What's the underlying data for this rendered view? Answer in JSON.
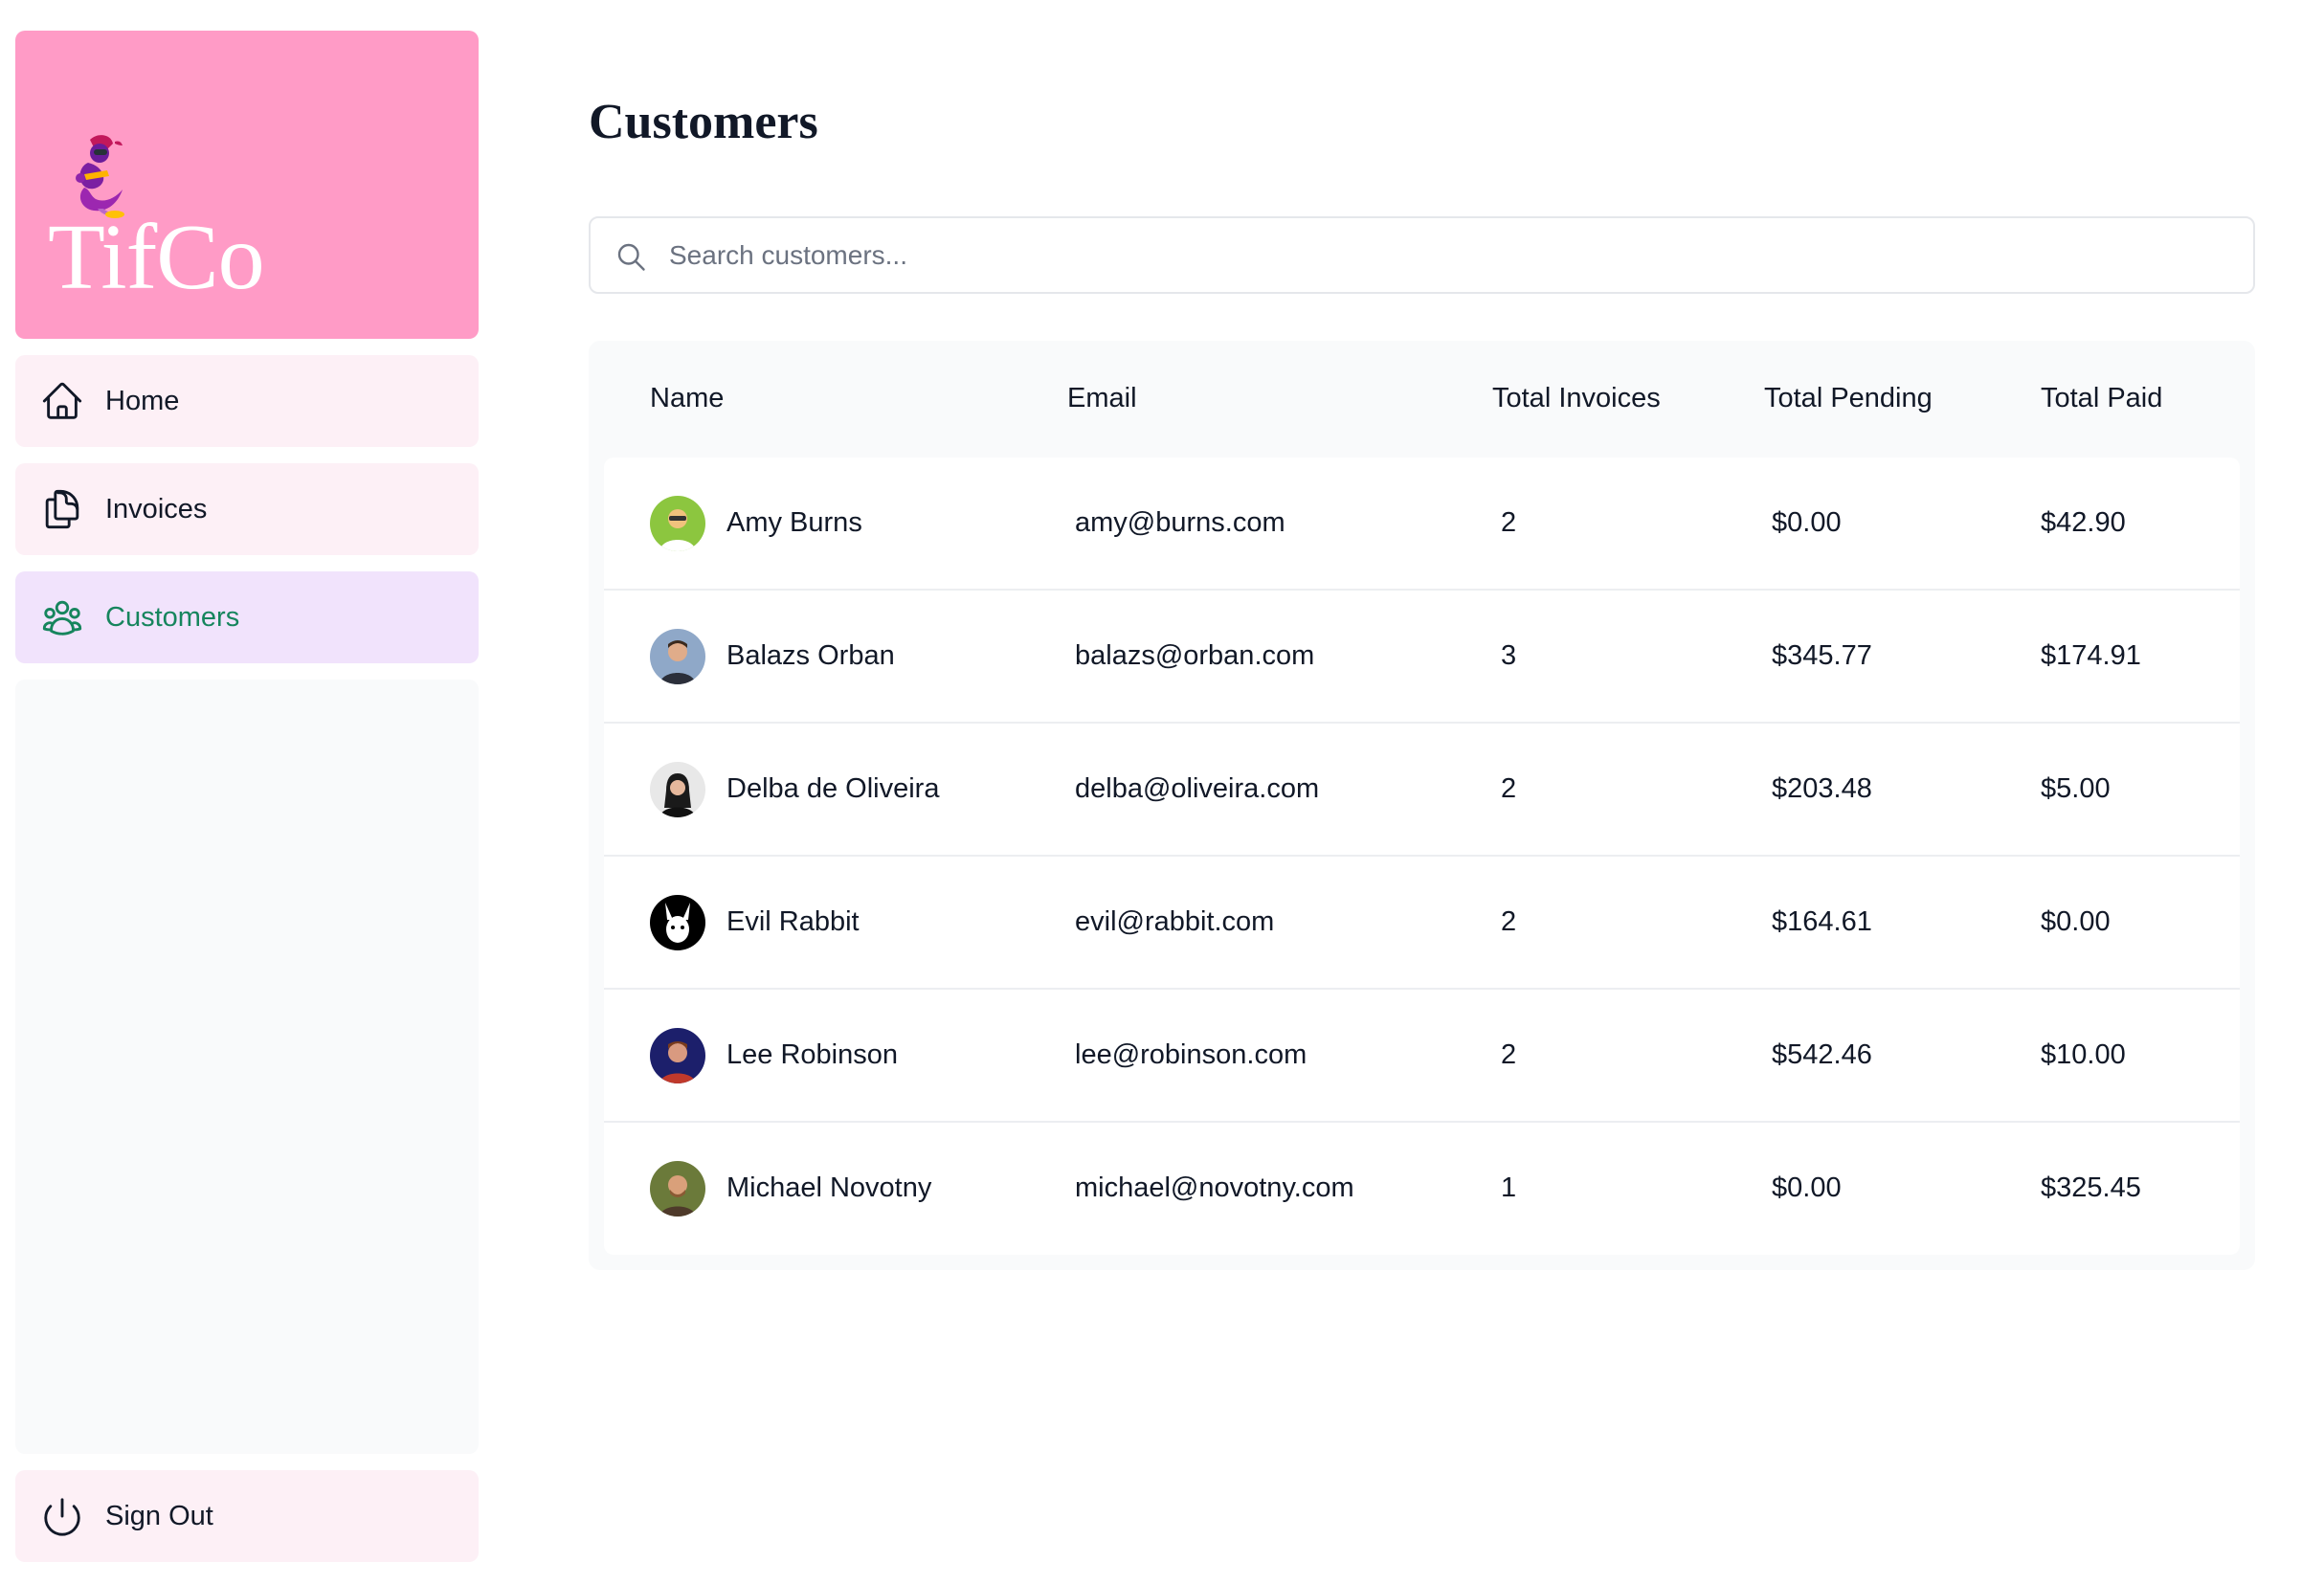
{
  "brand": {
    "name": "TifCo"
  },
  "nav": {
    "home": "Home",
    "invoices": "Invoices",
    "customers": "Customers",
    "sign_out": "Sign Out"
  },
  "page": {
    "title": "Customers"
  },
  "search": {
    "placeholder": "Search customers..."
  },
  "table": {
    "headers": {
      "name": "Name",
      "email": "Email",
      "total_invoices": "Total Invoices",
      "total_pending": "Total Pending",
      "total_paid": "Total Paid"
    },
    "rows": [
      {
        "name": "Amy Burns",
        "email": "amy@burns.com",
        "total_invoices": "2",
        "total_pending": "$0.00",
        "total_paid": "$42.90",
        "avatar_bg": "#8cc63f"
      },
      {
        "name": "Balazs Orban",
        "email": "balazs@orban.com",
        "total_invoices": "3",
        "total_pending": "$345.77",
        "total_paid": "$174.91",
        "avatar_bg": "#8fa8c8"
      },
      {
        "name": "Delba de Oliveira",
        "email": "delba@oliveira.com",
        "total_invoices": "2",
        "total_pending": "$203.48",
        "total_paid": "$5.00",
        "avatar_bg": "#e8e8e8"
      },
      {
        "name": "Evil Rabbit",
        "email": "evil@rabbit.com",
        "total_invoices": "2",
        "total_pending": "$164.61",
        "total_paid": "$0.00",
        "avatar_bg": "#000000"
      },
      {
        "name": "Lee Robinson",
        "email": "lee@robinson.com",
        "total_invoices": "2",
        "total_pending": "$542.46",
        "total_paid": "$10.00",
        "avatar_bg": "#1c1f6b"
      },
      {
        "name": "Michael Novotny",
        "email": "michael@novotny.com",
        "total_invoices": "1",
        "total_pending": "$0.00",
        "total_paid": "$325.45",
        "avatar_bg": "#6b7a3a"
      }
    ]
  },
  "colors": {
    "logo_bg": "#ff9bc6",
    "nav_bg": "#fdf0f6",
    "nav_active_bg": "#f1e3fc",
    "nav_active_text": "#16855d",
    "table_bg": "#f9fafb"
  },
  "icons": {
    "logo": "genie-icon",
    "home": "house-icon",
    "invoices": "documents-icon",
    "customers": "user-group-icon",
    "sign_out": "power-icon",
    "search": "magnifier-icon"
  }
}
